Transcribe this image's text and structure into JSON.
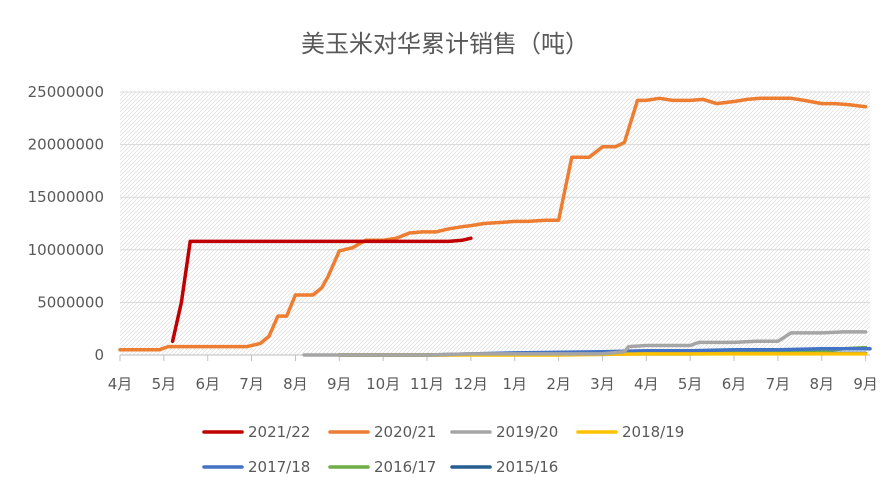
{
  "chart_data": {
    "type": "line",
    "title": "美玉米对华累计销售（吨）",
    "xlabel": "",
    "ylabel": "",
    "ylim": [
      0,
      25000000
    ],
    "xlim": [
      0,
      17.1
    ],
    "y_ticks": [
      0,
      5000000,
      10000000,
      15000000,
      20000000,
      25000000
    ],
    "y_tick_labels": [
      "0",
      "5000000",
      "10000000",
      "15000000",
      "20000000",
      "25000000"
    ],
    "x_tick_labels": [
      "4月",
      "5月",
      "6月",
      "7月",
      "8月",
      "9月",
      "10月",
      "11月",
      "12月",
      "1月",
      "2月",
      "3月",
      "4月",
      "5月",
      "6月",
      "7月",
      "8月",
      "9月"
    ],
    "grid": true,
    "legend_position": "bottom",
    "series": [
      {
        "name": "2021/22",
        "color": "#c00000",
        "x": [
          1.2,
          1.4,
          1.6,
          1.8,
          2.0,
          2.5,
          3.0,
          3.5,
          4.0,
          4.5,
          5.0,
          5.5,
          6.0,
          6.5,
          7.0,
          7.5,
          7.8,
          8.0
        ],
        "values": [
          1300000,
          5000000,
          10800000,
          10800000,
          10800000,
          10800000,
          10800000,
          10800000,
          10800000,
          10800000,
          10800000,
          10800000,
          10800000,
          10800000,
          10800000,
          10800000,
          10900000,
          11100000
        ]
      },
      {
        "name": "2020/21",
        "color": "#ed7d31",
        "x": [
          0,
          0.5,
          0.9,
          1.1,
          1.5,
          2.0,
          2.5,
          2.9,
          3.2,
          3.4,
          3.6,
          3.8,
          4.0,
          4.2,
          4.4,
          4.6,
          4.75,
          5.0,
          5.3,
          5.6,
          6.0,
          6.3,
          6.6,
          6.9,
          7.2,
          7.5,
          7.8,
          8.0,
          8.3,
          8.7,
          9.0,
          9.3,
          9.7,
          9.8,
          10.0,
          10.3,
          10.5,
          10.7,
          11.0,
          11.3,
          11.5,
          11.8,
          12.0,
          12.3,
          12.6,
          13.0,
          13.3,
          13.6,
          14.0,
          14.3,
          14.6,
          15.0,
          15.3,
          15.6,
          16.0,
          16.3,
          16.6,
          17.0
        ],
        "values": [
          500000,
          500000,
          500000,
          800000,
          800000,
          800000,
          800000,
          800000,
          1100000,
          1800000,
          3700000,
          3700000,
          5700000,
          5700000,
          5700000,
          6400000,
          7500000,
          9900000,
          10200000,
          10900000,
          10900000,
          11100000,
          11600000,
          11700000,
          11700000,
          12000000,
          12200000,
          12300000,
          12500000,
          12600000,
          12700000,
          12700000,
          12800000,
          12800000,
          12800000,
          18800000,
          18800000,
          18800000,
          19800000,
          19800000,
          20200000,
          24200000,
          24200000,
          24400000,
          24200000,
          24200000,
          24300000,
          23900000,
          24100000,
          24300000,
          24400000,
          24400000,
          24400000,
          24200000,
          23900000,
          23900000,
          23800000,
          23600000
        ]
      },
      {
        "name": "2019/20",
        "color": "#a5a5a5",
        "x": [
          4.2,
          5.0,
          6.0,
          7.0,
          8.0,
          9.0,
          10.0,
          11.0,
          11.5,
          11.6,
          12.0,
          12.5,
          13.0,
          13.2,
          14.0,
          14.5,
          15.0,
          15.3,
          16.0,
          16.5,
          17.0
        ],
        "values": [
          0,
          0,
          0,
          0,
          100000,
          100000,
          100000,
          100000,
          300000,
          800000,
          900000,
          900000,
          900000,
          1200000,
          1200000,
          1300000,
          1300000,
          2100000,
          2100000,
          2200000,
          2200000
        ]
      },
      {
        "name": "2018/19",
        "color": "#ffc000",
        "x": [
          5.0,
          6.0,
          8.0,
          10.0,
          12.0,
          14.0,
          16.0,
          17.0
        ],
        "values": [
          0,
          0,
          0,
          0,
          100000,
          100000,
          100000,
          100000
        ]
      },
      {
        "name": "2017/18",
        "color": "#4472c4",
        "x": [
          5.0,
          7.0,
          9.0,
          11.0,
          12.0,
          13.0,
          14.0,
          15.0,
          16.0,
          17.1
        ],
        "values": [
          0,
          0,
          200000,
          300000,
          400000,
          400000,
          500000,
          500000,
          600000,
          600000
        ]
      },
      {
        "name": "2016/17",
        "color": "#70ad47",
        "x": [
          5.0,
          7.0,
          9.0,
          11.0,
          13.0,
          15.0,
          16.0,
          16.5,
          17.0
        ],
        "values": [
          0,
          0,
          100000,
          100000,
          200000,
          300000,
          400000,
          600000,
          700000
        ]
      },
      {
        "name": "2015/16",
        "color": "#255e91",
        "x": [
          5.0,
          7.0,
          9.0,
          11.0,
          13.0,
          15.0,
          17.0
        ],
        "values": [
          0,
          0,
          50000,
          100000,
          100000,
          150000,
          150000
        ]
      }
    ]
  }
}
